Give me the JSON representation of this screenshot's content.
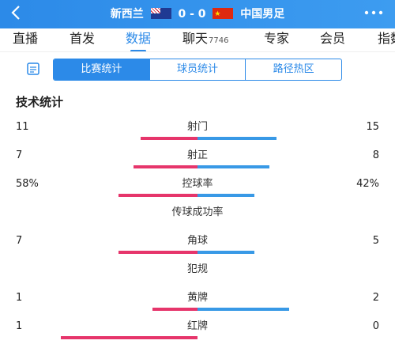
{
  "header": {
    "back_icon": "back-chevron-icon",
    "home_team": "新西兰",
    "score": "0 - 0",
    "away_team": "中国男足",
    "more_icon": "more-dots-icon"
  },
  "tabs": [
    {
      "label": "直播"
    },
    {
      "label": "首发"
    },
    {
      "label": "数据",
      "active": true
    },
    {
      "label": "聊天",
      "count": "7746"
    },
    {
      "label": "专家"
    },
    {
      "label": "会员"
    },
    {
      "label": "指数"
    }
  ],
  "segments": [
    "比赛统计",
    "球员统计",
    "路径热区"
  ],
  "section_title": "技术统计",
  "stats": [
    {
      "name": "射门",
      "left": "11",
      "right": "15",
      "left_frac": 0.42,
      "right_frac": 0.58
    },
    {
      "name": "射正",
      "left": "7",
      "right": "8",
      "left_frac": 0.47,
      "right_frac": 0.53
    },
    {
      "name": "控球率",
      "left": "58%",
      "right": "42%",
      "left_frac": 0.58,
      "right_frac": 0.42
    },
    {
      "name": "传球成功率",
      "left": "",
      "right": ""
    },
    {
      "name": "角球",
      "left": "7",
      "right": "5",
      "left_frac": 0.58,
      "right_frac": 0.42
    },
    {
      "name": "犯规",
      "left": "",
      "right": ""
    },
    {
      "name": "黄牌",
      "left": "1",
      "right": "2",
      "left_frac": 0.33,
      "right_frac": 0.67
    },
    {
      "name": "红牌",
      "left": "1",
      "right": "0",
      "left_frac": 1.0,
      "right_frac": 0.0
    }
  ],
  "colors": {
    "accent": "#2c8ae8",
    "home_bar": "#e6356b",
    "away_bar": "#3899e6"
  }
}
